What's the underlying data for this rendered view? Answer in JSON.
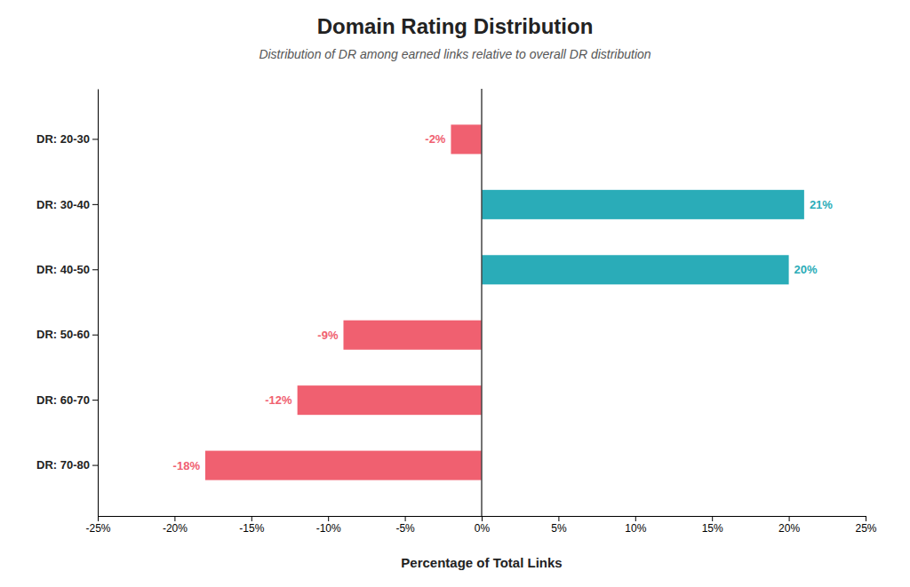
{
  "chart_data": {
    "type": "bar",
    "orientation": "horizontal",
    "title": "Domain Rating Distribution",
    "subtitle": "Distribution of DR among earned links relative to overall DR distribution",
    "xlabel": "Percentage of Total Links",
    "categories": [
      "DR: 20-30",
      "DR: 30-40",
      "DR: 40-50",
      "DR: 50-60",
      "DR: 60-70",
      "DR: 70-80"
    ],
    "values": [
      -2,
      21,
      20,
      -9,
      -12,
      -18
    ],
    "value_labels": [
      "-2%",
      "21%",
      "20%",
      "-9%",
      "-12%",
      "-18%"
    ],
    "data_labels": true,
    "colors": [
      "#F06070",
      "#2AACB8",
      "#2AACB8",
      "#F06070",
      "#F06070",
      "#F06070"
    ],
    "xlim": [
      -25,
      25
    ],
    "xticks": [
      {
        "value": -25,
        "label": "-25%"
      },
      {
        "value": -20,
        "label": "-20%"
      },
      {
        "value": -15,
        "label": "-15%"
      },
      {
        "value": -10,
        "label": "-10%"
      },
      {
        "value": -5,
        "label": "-5%"
      },
      {
        "value": 0,
        "label": "0%"
      },
      {
        "value": 5,
        "label": "5%"
      },
      {
        "value": 10,
        "label": "10%"
      },
      {
        "value": 15,
        "label": "15%"
      },
      {
        "value": 20,
        "label": "20%"
      },
      {
        "value": 25,
        "label": "25%"
      }
    ],
    "grid": false
  }
}
